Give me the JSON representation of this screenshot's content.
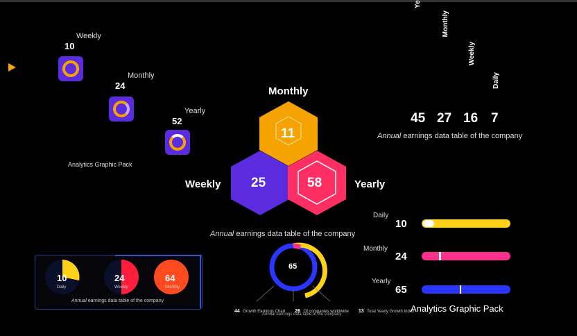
{
  "icon_pack": {
    "items": [
      {
        "label": "Weekly",
        "value": "10"
      },
      {
        "label": "Monthly",
        "value": "24"
      },
      {
        "label": "Yearly",
        "value": "52"
      }
    ],
    "caption": "Analytics Graphic Pack"
  },
  "hexagons": {
    "monthly_label": "Monthly",
    "weekly_label": "Weekly",
    "yearly_label": "Yearly",
    "monthly_value": "11",
    "weekly_value": "25",
    "yearly_value": "58",
    "caption_italic": "Annual",
    "caption_rest": " earnings data table of the company"
  },
  "vertical_table": {
    "headers": [
      "Ye",
      "Monthly",
      "Weekly",
      "Daily"
    ],
    "values": [
      "45",
      "27",
      "16",
      "7"
    ],
    "caption_italic": "Annual",
    "caption_rest": " earnings data table of the company"
  },
  "pie_panel": {
    "items": [
      {
        "value": "10",
        "label": "Daily",
        "fraction": 0.1
      },
      {
        "value": "24",
        "label": "Weekly",
        "fraction": 0.5
      },
      {
        "value": "64",
        "label": "Monthly",
        "fraction": 1.0
      }
    ],
    "caption_italic": "Annual",
    "caption_rest": " earnings data table of the company"
  },
  "ring_chart": {
    "center": "65",
    "stats": [
      {
        "value": "44",
        "text": "Growth Earnings Chart"
      },
      {
        "value": "26",
        "text": "Of companies worldwide"
      },
      {
        "value": "13",
        "text": "Total Yearly Growth Index"
      }
    ],
    "caption": "Annual earnings data table of the company"
  },
  "bars": {
    "items": [
      {
        "label": "Daily",
        "value": "10",
        "color": "#ffd21a",
        "marker": 0.06
      },
      {
        "label": "Monthly",
        "value": "24",
        "color": "#ff2f8e",
        "marker": 0.2
      },
      {
        "label": "Yearly",
        "value": "65",
        "color": "#2a36ff",
        "marker": 0.44
      }
    ],
    "caption": "Analytics Graphic Pack"
  },
  "colors": {
    "yellow": "#f5a300",
    "purple": "#5b2be0",
    "pink": "#ff2e63",
    "blue": "#2a36ff"
  }
}
